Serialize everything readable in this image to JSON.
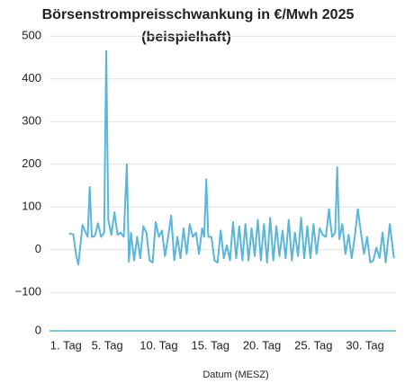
{
  "chart_data": {
    "type": "line",
    "title": "Börsenstrompreisschwankung in €/Mwh 2025",
    "subtitle": "(beispielhaft)",
    "xlabel": "Datum (MESZ)",
    "xlim": [
      -0.6,
      33
    ],
    "xticks": [
      {
        "value": 1,
        "label": "1. Tag"
      },
      {
        "value": 5,
        "label": "5. Tag"
      },
      {
        "value": 10,
        "label": "10. Tag"
      },
      {
        "value": 15,
        "label": "15. Tag"
      },
      {
        "value": 20,
        "label": "20. Tag"
      },
      {
        "value": 25,
        "label": "25. Tag"
      },
      {
        "value": 30,
        "label": "30. Tag"
      }
    ],
    "ylim": [
      -190,
      510
    ],
    "yticks": [
      500,
      400,
      300,
      200,
      100,
      0,
      {
        "value": -100,
        "label": "−100"
      }
    ],
    "y2lim": [
      0,
      100
    ],
    "y2ticks": [
      0
    ],
    "grid": true,
    "series": [
      {
        "color": "#5bb6d8",
        "x": [
          1.3,
          1.7,
          2.0,
          2.2,
          2.6,
          2.9,
          3.1,
          3.3,
          3.5,
          3.8,
          4.1,
          4.4,
          4.7,
          4.9,
          5.1,
          5.4,
          5.7,
          6.0,
          6.3,
          6.6,
          6.9,
          7.1,
          7.3,
          7.6,
          7.9,
          8.2,
          8.5,
          8.8,
          9.1,
          9.4,
          9.7,
          10.0,
          10.3,
          10.6,
          10.9,
          11.2,
          11.5,
          11.8,
          12.1,
          12.4,
          12.7,
          13.0,
          13.3,
          13.6,
          13.9,
          14.2,
          14.4,
          14.6,
          14.8,
          15.1,
          15.4,
          15.7,
          16.0,
          16.3,
          16.6,
          16.9,
          17.2,
          17.5,
          17.8,
          18.1,
          18.4,
          18.7,
          19.0,
          19.3,
          19.6,
          19.9,
          20.2,
          20.5,
          20.8,
          21.1,
          21.4,
          21.7,
          22.0,
          22.3,
          22.6,
          22.9,
          23.2,
          23.5,
          23.8,
          24.1,
          24.4,
          24.7,
          25.0,
          25.3,
          25.6,
          25.9,
          26.2,
          26.5,
          26.8,
          27.1,
          27.3,
          27.5,
          27.8,
          28.1,
          28.4,
          28.7,
          29.0,
          29.3,
          29.6,
          29.9,
          30.2,
          30.5,
          30.8,
          31.1,
          31.4,
          31.7,
          32.0,
          32.4,
          32.8
        ],
        "values": [
          38,
          36,
          -15,
          -35,
          58,
          40,
          30,
          147,
          30,
          32,
          62,
          30,
          40,
          465,
          70,
          35,
          88,
          35,
          40,
          30,
          200,
          -28,
          40,
          -25,
          30,
          -20,
          55,
          40,
          -25,
          -30,
          65,
          30,
          45,
          -15,
          30,
          80,
          -25,
          30,
          -20,
          50,
          -10,
          60,
          30,
          40,
          -10,
          50,
          30,
          165,
          30,
          30,
          -25,
          -30,
          45,
          -20,
          10,
          -25,
          65,
          -20,
          55,
          -25,
          60,
          -25,
          50,
          -15,
          70,
          -25,
          60,
          -30,
          75,
          -25,
          55,
          -15,
          45,
          -20,
          70,
          -25,
          40,
          -15,
          75,
          -20,
          55,
          -20,
          60,
          -10,
          50,
          35,
          30,
          95,
          30,
          40,
          193,
          25,
          60,
          -10,
          35,
          -20,
          30,
          95,
          40,
          -10,
          30,
          -30,
          -25,
          5,
          -20,
          40,
          -30,
          60,
          -20
        ]
      }
    ]
  }
}
